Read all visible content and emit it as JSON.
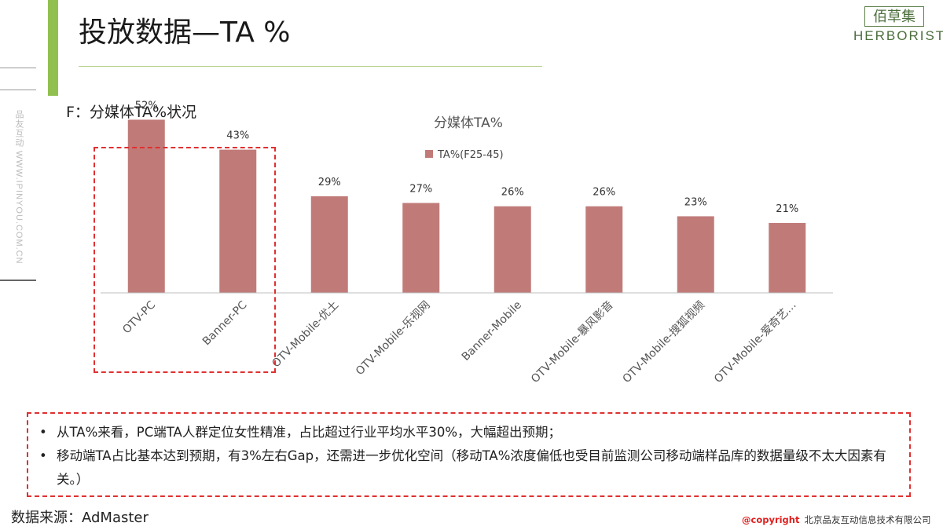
{
  "header": {
    "title": "投放数据—TA %",
    "logo_cn": "佰草集",
    "logo_en": "HERBORIST"
  },
  "side": {
    "vertical_text": "品友互动 WWW.IPINYOU.COM.CN"
  },
  "subtitle": "F：分媒体TA%状况",
  "chart_data": {
    "type": "bar",
    "title": "分媒体TA%",
    "categories": [
      "OTV-PC",
      "Banner-PC",
      "OTV-Mobile-优土",
      "OTV-Mobile-乐视网",
      "Banner-Mobile",
      "OTV-Mobile-暴风影音",
      "OTV-Mobile-搜狐视频",
      "OTV-Mobile-爱奇艺…"
    ],
    "series": [
      {
        "name": "TA%(F25-45)",
        "values": [
          52,
          43,
          29,
          27,
          26,
          26,
          23,
          21
        ],
        "labels": [
          "52%",
          "43%",
          "29%",
          "27%",
          "26%",
          "26%",
          "23%",
          "21%"
        ]
      }
    ],
    "ylim": [
      0,
      60
    ],
    "grid": false,
    "legend_position": "top-center",
    "bar_color": "#c07b79"
  },
  "notes": {
    "bullet": "•",
    "items": [
      "从TA%来看，PC端TA人群定位女性精准，占比超过行业平均水平30%，大幅超出预期；",
      "移动端TA占比基本达到预期，有3%左右Gap，还需进一步优化空间（移动TA%浓度偏低也受目前监测公司移动端样品库的数据量级不太大因素有关。）"
    ]
  },
  "footer": {
    "source": "数据来源：AdMaster",
    "copyright_label": "@copyright",
    "company": "北京品友互动信息技术有限公司"
  },
  "colors": {
    "accent_green": "#92c050",
    "highlight_red": "#e03030",
    "bar": "#c07b79"
  }
}
